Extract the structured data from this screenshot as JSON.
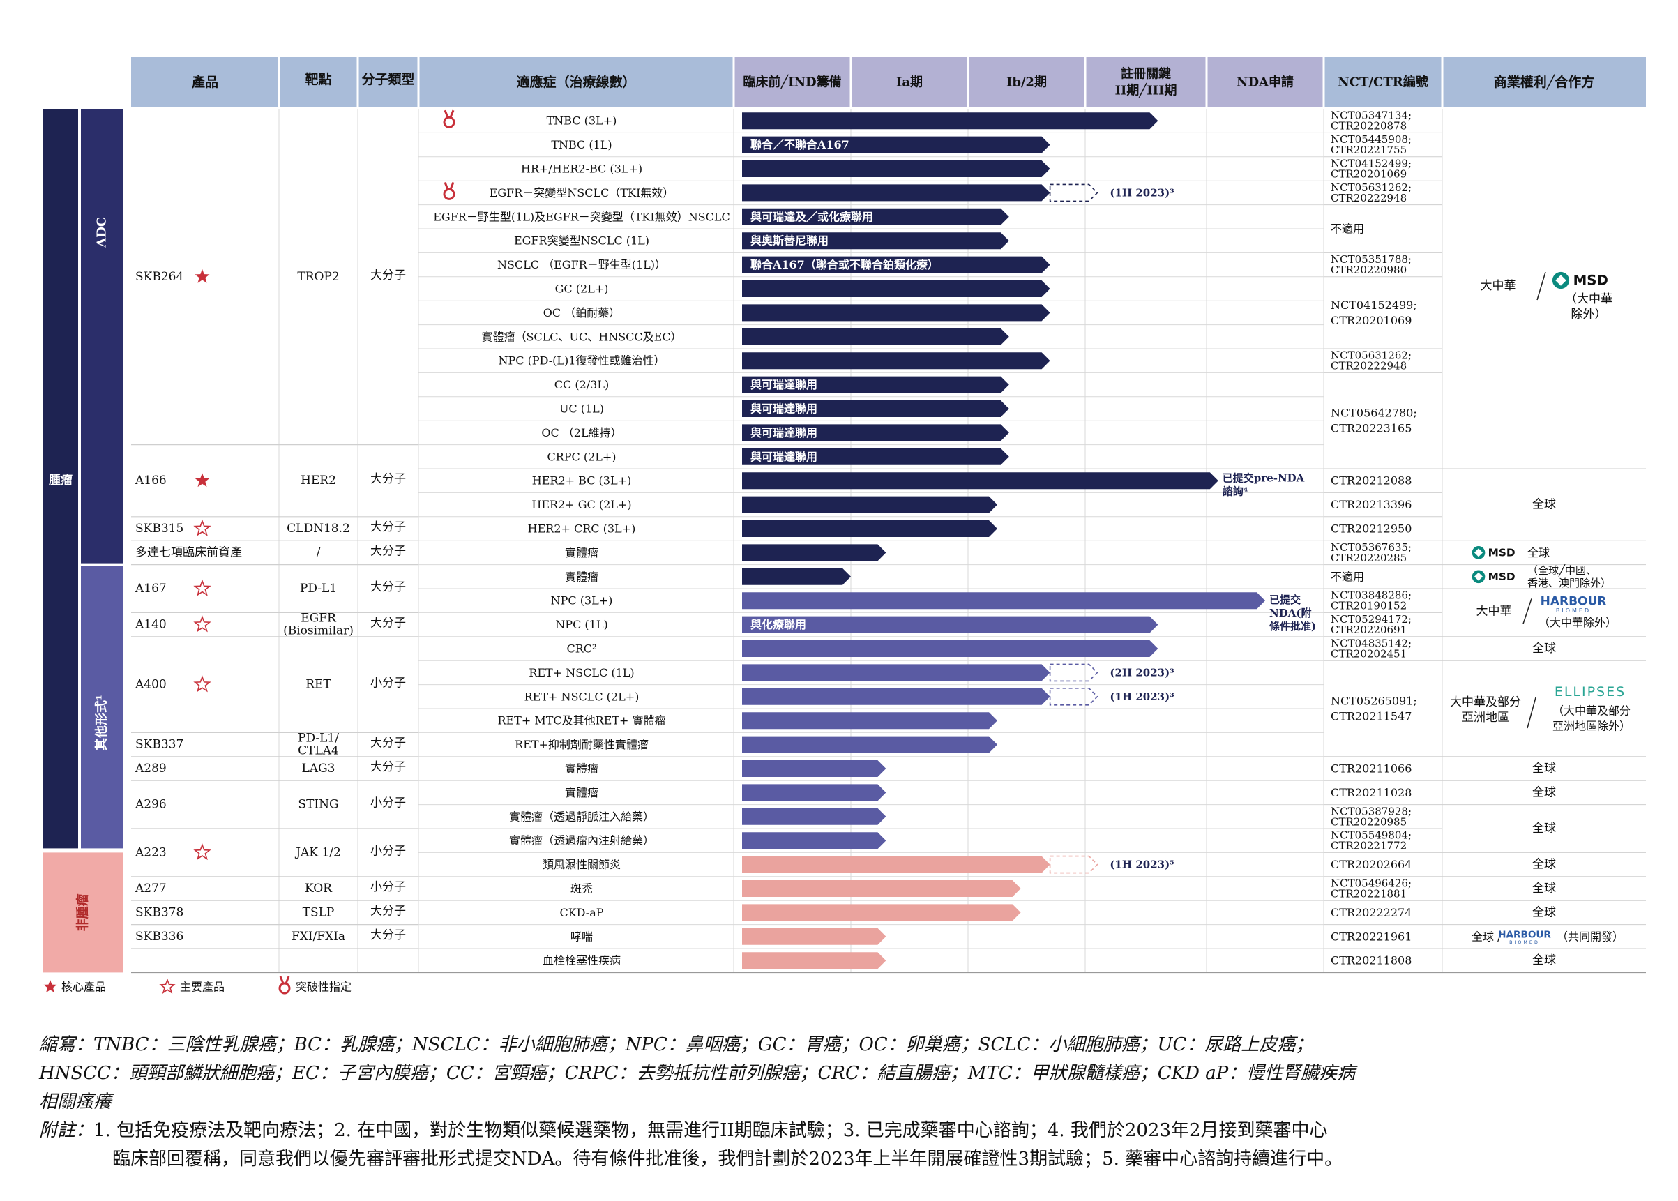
{
  "header": {
    "product": "產品",
    "target": "靶點",
    "molecule": "分子類型",
    "indication": "適應症（治療線數）",
    "stages": [
      "臨床前╱IND籌備",
      "Ia期",
      "Ib/2期",
      "註冊關鍵|II期╱III期",
      "NDA申請"
    ],
    "nct": "NCT/CTR編號",
    "rights": "商業權利╱合作方"
  },
  "categories": {
    "oncology": "腫瘤",
    "adc": "ADC",
    "other": "其他形式¹",
    "non_oncology": "非腫瘤"
  },
  "colors": {
    "adc_bar": "#1e2352",
    "other_bar": "#5a5ba3",
    "non_onc_bar": "#eaa39e",
    "header_bg": "#a9bcd9",
    "header_stage_bg": "#b3b1d3",
    "star": "#c8303a"
  },
  "products": [
    {
      "name": "SKB264",
      "star": "core",
      "target": "TROP2",
      "molecule": "大分子",
      "rows": [
        0,
        13
      ]
    },
    {
      "name": "A166",
      "star": "core",
      "target": "HER2",
      "molecule": "大分子",
      "rows": [
        14,
        16
      ]
    },
    {
      "name": "SKB315",
      "star": "key",
      "target": "CLDN18.2",
      "molecule": "大分子",
      "rows": [
        17,
        17
      ]
    },
    {
      "name": "多達七項臨床前資產",
      "star": "",
      "target": "/",
      "molecule": "大分子",
      "rows": [
        18,
        18
      ]
    },
    {
      "name": "A167",
      "star": "key",
      "target": "PD-L1",
      "molecule": "大分子",
      "rows": [
        19,
        20
      ]
    },
    {
      "name": "A140",
      "star": "key",
      "target": "EGFR|(Biosimilar)",
      "molecule": "大分子",
      "rows": [
        21,
        21
      ]
    },
    {
      "name": "A400",
      "star": "key",
      "target": "RET",
      "molecule": "小分子",
      "rows": [
        22,
        25
      ]
    },
    {
      "name": "SKB337",
      "star": "",
      "target": "PD-L1/|CTLA4",
      "molecule": "大分子",
      "rows": [
        26,
        26
      ]
    },
    {
      "name": "A289",
      "star": "",
      "target": "LAG3",
      "molecule": "大分子",
      "rows": [
        27,
        27
      ]
    },
    {
      "name": "A296",
      "star": "",
      "target": "STING",
      "molecule": "小分子",
      "rows": [
        28,
        29
      ]
    },
    {
      "name": "A223",
      "star": "key",
      "target": "JAK 1/2",
      "molecule": "小分子",
      "rows": [
        30,
        31
      ]
    },
    {
      "name": "A277",
      "star": "",
      "target": "KOR",
      "molecule": "小分子",
      "rows": [
        32,
        32
      ]
    },
    {
      "name": "SKB378",
      "star": "",
      "target": "TSLP",
      "molecule": "大分子",
      "rows": [
        33,
        33
      ]
    },
    {
      "name": "SKB336",
      "star": "",
      "target": "FXI/FXIa",
      "molecule": "大分子",
      "rows": [
        34,
        34
      ]
    }
  ],
  "rows": [
    {
      "indication": "TNBC (3L+)",
      "medal": true,
      "group": "adc",
      "bar_end": 3.6,
      "label": ""
    },
    {
      "indication": "TNBC (1L)",
      "group": "adc",
      "bar_end": 2.7,
      "label": "聯合／不聯合A167"
    },
    {
      "indication": "HR+/HER2-BC (3L+)",
      "group": "adc",
      "bar_end": 2.7,
      "label": ""
    },
    {
      "indication": "EGFR－突變型NSCLC（TKI無效）",
      "medal": true,
      "group": "adc",
      "bar_end": 2.7,
      "dashed_to": 3.1,
      "dashed_note": "(1H 2023)³",
      "label": ""
    },
    {
      "indication": "EGFR－野生型(1L)及EGFR－突變型（TKI無效）NSCLC",
      "group": "adc",
      "bar_end": 2.35,
      "label": "與可瑞達及／或化療聯用"
    },
    {
      "indication": "EGFR突變型NSCLC (1L)",
      "group": "adc",
      "bar_end": 2.35,
      "label": "與奧斯替尼聯用"
    },
    {
      "indication": "NSCLC （EGFR－野生型(1L)）",
      "group": "adc",
      "bar_end": 2.7,
      "label": "聯合A167（聯合或不聯合鉑類化療）"
    },
    {
      "indication": "GC (2L+)",
      "group": "adc",
      "bar_end": 2.7,
      "label": ""
    },
    {
      "indication": "OC （鉑耐藥）",
      "group": "adc",
      "bar_end": 2.7,
      "label": ""
    },
    {
      "indication": "實體瘤（SCLC、UC、HNSCC及EC）",
      "group": "adc",
      "bar_end": 2.35,
      "label": ""
    },
    {
      "indication": "NPC (PD-(L)1復發性或難治性）",
      "group": "adc",
      "bar_end": 2.7,
      "label": ""
    },
    {
      "indication": "CC (2/3L)",
      "group": "adc",
      "bar_end": 2.35,
      "label": "與可瑞達聯用"
    },
    {
      "indication": "UC (1L)",
      "group": "adc",
      "bar_end": 2.35,
      "label": "與可瑞達聯用"
    },
    {
      "indication": "OC （2L維持）",
      "group": "adc",
      "bar_end": 2.35,
      "label": "與可瑞達聯用"
    },
    {
      "indication": "CRPC (2L+)",
      "group": "adc",
      "bar_end": 2.35,
      "label": "與可瑞達聯用"
    },
    {
      "indication": "HER2+ BC (3L+)",
      "group": "adc",
      "bar_end": 4.1,
      "label": "",
      "end_note": "已提交pre-NDA|諮詢⁴"
    },
    {
      "indication": "HER2+ GC (2L+)",
      "group": "adc",
      "bar_end": 2.25,
      "label": ""
    },
    {
      "indication": "HER2+ CRC (3L+)",
      "group": "adc",
      "bar_end": 2.25,
      "label": ""
    },
    {
      "indication": "實體瘤",
      "group": "adc",
      "bar_end": 1.3,
      "label": ""
    },
    {
      "indication": "實體瘤",
      "group": "adc",
      "bar_end": 1.0,
      "label": ""
    },
    {
      "indication": "NPC (3L+)",
      "group": "other",
      "bar_end": 4.5,
      "label": "",
      "end_note": "已提交|NDA(附|條件批准)"
    },
    {
      "indication": "NPC (1L)",
      "group": "other",
      "bar_end": 3.6,
      "label": "與化療聯用"
    },
    {
      "indication": "CRC²",
      "group": "other",
      "bar_end": 3.6,
      "label": ""
    },
    {
      "indication": "RET+ NSCLC (1L)",
      "group": "other",
      "bar_end": 2.7,
      "dashed_to": 3.1,
      "dashed_note": "(2H 2023)³",
      "label": ""
    },
    {
      "indication": "RET+ NSCLC (2L+)",
      "group": "other",
      "bar_end": 2.7,
      "dashed_to": 3.1,
      "dashed_note": "(1H 2023)³",
      "label": ""
    },
    {
      "indication": "RET+ MTC及其他RET+ 實體瘤",
      "group": "other",
      "bar_end": 2.25,
      "label": ""
    },
    {
      "indication": "RET+抑制劑耐藥性實體瘤",
      "group": "other",
      "bar_end": 2.25,
      "label": ""
    },
    {
      "indication": "實體瘤",
      "group": "other",
      "bar_end": 1.3,
      "label": ""
    },
    {
      "indication": "實體瘤",
      "group": "other",
      "bar_end": 1.3,
      "label": ""
    },
    {
      "indication": "實體瘤（透過靜脈注入給藥）",
      "group": "other",
      "bar_end": 1.3,
      "label": ""
    },
    {
      "indication": "實體瘤（透過瘤內注射給藥）",
      "group": "other",
      "bar_end": 1.3,
      "label": ""
    },
    {
      "indication": "類風濕性關節炎",
      "group": "non",
      "bar_end": 2.7,
      "dashed_to": 3.1,
      "dashed_note": "(1H 2023)⁵",
      "label": ""
    },
    {
      "indication": "斑禿",
      "group": "non",
      "bar_end": 2.45,
      "label": ""
    },
    {
      "indication": "CKD-aP",
      "group": "non",
      "bar_end": 2.45,
      "label": ""
    },
    {
      "indication": "哮喘",
      "group": "non",
      "bar_end": 1.3,
      "label": ""
    },
    {
      "indication": "血栓栓塞性疾病",
      "group": "non",
      "bar_end": 1.3,
      "label": ""
    }
  ],
  "nct": [
    {
      "rows": [
        0,
        0
      ],
      "text": "NCT05347134;|CTR20220878"
    },
    {
      "rows": [
        1,
        1
      ],
      "text": "NCT05445908;|CTR20221755"
    },
    {
      "rows": [
        2,
        2
      ],
      "text": "NCT04152499;|CTR20201069"
    },
    {
      "rows": [
        3,
        3
      ],
      "text": "NCT05631262;|CTR20222948"
    },
    {
      "rows": [
        4,
        5
      ],
      "text": "不適用"
    },
    {
      "rows": [
        6,
        6
      ],
      "text": "NCT05351788;|CTR20220980"
    },
    {
      "rows": [
        7,
        9
      ],
      "text": "NCT04152499;|CTR20201069"
    },
    {
      "rows": [
        10,
        10
      ],
      "text": "NCT05631262;|CTR20222948"
    },
    {
      "rows": [
        11,
        14
      ],
      "text": "NCT05642780;|CTR20223165"
    },
    {
      "rows": [
        15,
        15
      ],
      "text": "CTR20212088"
    },
    {
      "rows": [
        16,
        16
      ],
      "text": "CTR20213396"
    },
    {
      "rows": [
        17,
        17
      ],
      "text": "CTR20212950"
    },
    {
      "rows": [
        18,
        18
      ],
      "text": "NCT05367635;|CTR20220285"
    },
    {
      "rows": [
        19,
        19
      ],
      "text": "不適用"
    },
    {
      "rows": [
        20,
        20
      ],
      "text": "NCT03848286;|CTR20190152"
    },
    {
      "rows": [
        21,
        21
      ],
      "text": "NCT05294172;|CTR20220691"
    },
    {
      "rows": [
        22,
        22
      ],
      "text": "NCT04835142;|CTR20202451"
    },
    {
      "rows": [
        23,
        26
      ],
      "text": "NCT05265091;|CTR20211547"
    },
    {
      "rows": [
        27,
        27
      ],
      "text": "CTR20211066"
    },
    {
      "rows": [
        28,
        28
      ],
      "text": "CTR20211028"
    },
    {
      "rows": [
        29,
        29
      ],
      "text": "NCT05387928;|CTR20220985"
    },
    {
      "rows": [
        30,
        30
      ],
      "text": "NCT05549804;|CTR20221772"
    },
    {
      "rows": [
        31,
        31
      ],
      "text": "CTR20202664"
    },
    {
      "rows": [
        32,
        32
      ],
      "text": "NCT05496426;|CTR20221881"
    },
    {
      "rows": [
        33,
        33
      ],
      "text": "CTR20222274"
    },
    {
      "rows": [
        34,
        34
      ],
      "text": "CTR20221961"
    },
    {
      "rows": [
        35,
        35
      ],
      "text": "CTR20211808"
    }
  ],
  "rights": [
    {
      "rows": [
        0,
        14
      ],
      "text": "大中華",
      "partner": "MSD",
      "note": "（大中華|除外）"
    },
    {
      "rows": [
        15,
        17
      ],
      "text": "全球"
    },
    {
      "rows": [
        18,
        18
      ],
      "text": "全球",
      "partner": "MSD",
      "left": true
    },
    {
      "rows": [
        19,
        19
      ],
      "text": "（全球╱中國、|香港、澳門除外）",
      "partner": "MSD",
      "left": true
    },
    {
      "rows": [
        20,
        21
      ],
      "text": "大中華",
      "partner": "HARBOUR",
      "note": "（大中華除外）"
    },
    {
      "rows": [
        22,
        22
      ],
      "text": "全球"
    },
    {
      "rows": [
        23,
        26
      ],
      "text": "大中華及部分|亞洲地區",
      "partner": "ELLIPSES",
      "note": "（大中華及部分|亞洲地區除外）"
    },
    {
      "rows": [
        27,
        27
      ],
      "text": "全球"
    },
    {
      "rows": [
        28,
        28
      ],
      "text": "全球"
    },
    {
      "rows": [
        29,
        30
      ],
      "text": "全球"
    },
    {
      "rows": [
        31,
        31
      ],
      "text": "全球"
    },
    {
      "rows": [
        32,
        32
      ],
      "text": "全球"
    },
    {
      "rows": [
        33,
        33
      ],
      "text": "全球"
    },
    {
      "rows": [
        34,
        34
      ],
      "text": "全球 /",
      "partner": "HARBOUR",
      "note": "（共同開發）",
      "small": true
    },
    {
      "rows": [
        35,
        35
      ],
      "text": "全球"
    }
  ],
  "partners": {
    "MSD": "MSD",
    "HARBOUR": "HARBOUR",
    "HARBOUR_sub": "BIOMED",
    "ELLIPSES": "ELLIPSES"
  },
  "legend": {
    "core": "核心產品",
    "key": "主要產品",
    "breakthrough": "突破性指定"
  },
  "footnotes": {
    "abbr_line1": "縮寫：TNBC：三陰性乳腺癌；BC：乳腺癌；NSCLC：非小細胞肺癌；NPC：鼻咽癌；GC：胃癌；OC：卵巢癌；SCLC：小細胞肺癌；UC：尿路上皮癌；",
    "abbr_line2": "HNSCC：頭頸部鱗狀細胞癌；EC：子宮內膜癌；CC：宮頸癌；CRPC：去勢抵抗性前列腺癌；CRC：結直腸癌；MTC：甲狀腺髓樣癌；CKD aP：慢性腎臟疾病",
    "abbr_line3": "相關瘙癢",
    "notes_label": "附註：",
    "notes_line1": "1. 包括免疫療法及靶向療法；2. 在中國，對於生物類似藥候選藥物，無需進行II期臨床試驗；3. 已完成藥審中心諮詢；4. 我們於2023年2月接到藥審中心",
    "notes_line2": "臨床部回覆稱，同意我們以優先審評審批形式提交NDA。待有條件批准後，我們計劃於2023年上半年開展確證性3期試驗；5. 藥審中心諮詢持續進行中。"
  }
}
